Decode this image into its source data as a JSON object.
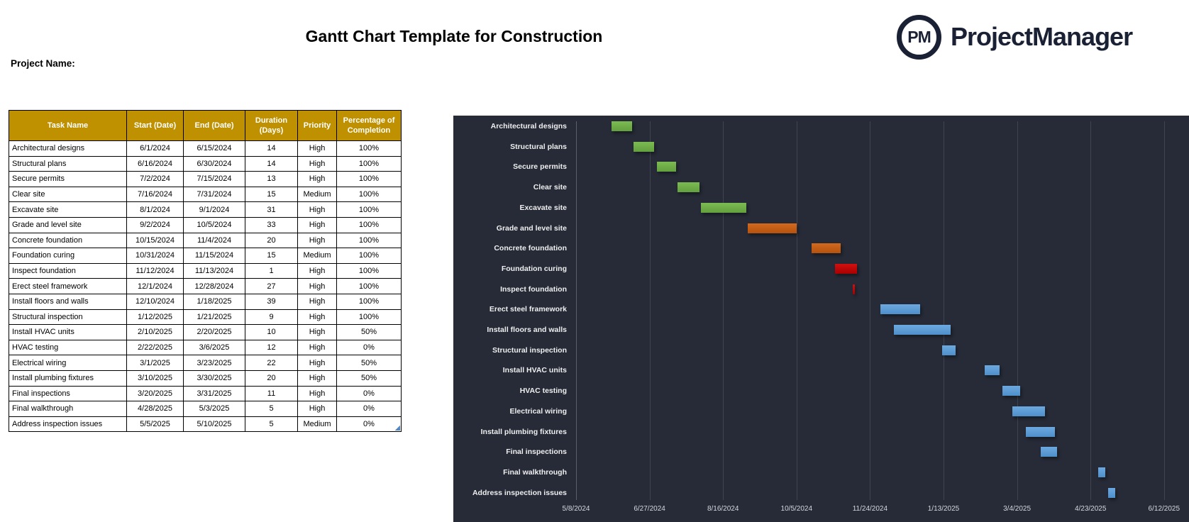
{
  "header": {
    "title": "Gantt Chart Template for Construction",
    "project_name_label": "Project Name:",
    "logo_monogram": "PM",
    "logo_text": "ProjectManager",
    "brand_color": "#1b2134"
  },
  "table": {
    "header_bg": "#BF9000",
    "columns": [
      "Task Name",
      "Start (Date)",
      "End (Date)",
      "Duration (Days)",
      "Priority",
      "Percentage of Completion"
    ],
    "rows": [
      {
        "task": "Architectural designs",
        "start": "6/1/2024",
        "end": "6/15/2024",
        "duration": "14",
        "priority": "High",
        "completion": "100%"
      },
      {
        "task": "Structural plans",
        "start": "6/16/2024",
        "end": "6/30/2024",
        "duration": "14",
        "priority": "High",
        "completion": "100%"
      },
      {
        "task": "Secure permits",
        "start": "7/2/2024",
        "end": "7/15/2024",
        "duration": "13",
        "priority": "High",
        "completion": "100%"
      },
      {
        "task": "Clear site",
        "start": "7/16/2024",
        "end": "7/31/2024",
        "duration": "15",
        "priority": "Medium",
        "completion": "100%"
      },
      {
        "task": "Excavate site",
        "start": "8/1/2024",
        "end": "9/1/2024",
        "duration": "31",
        "priority": "High",
        "completion": "100%"
      },
      {
        "task": "Grade and level site",
        "start": "9/2/2024",
        "end": "10/5/2024",
        "duration": "33",
        "priority": "High",
        "completion": "100%"
      },
      {
        "task": "Concrete foundation",
        "start": "10/15/2024",
        "end": "11/4/2024",
        "duration": "20",
        "priority": "High",
        "completion": "100%"
      },
      {
        "task": "Foundation curing",
        "start": "10/31/2024",
        "end": "11/15/2024",
        "duration": "15",
        "priority": "Medium",
        "completion": "100%"
      },
      {
        "task": "Inspect foundation",
        "start": "11/12/2024",
        "end": "11/13/2024",
        "duration": "1",
        "priority": "High",
        "completion": "100%"
      },
      {
        "task": "Erect steel framework",
        "start": "12/1/2024",
        "end": "12/28/2024",
        "duration": "27",
        "priority": "High",
        "completion": "100%"
      },
      {
        "task": "Install floors and walls",
        "start": "12/10/2024",
        "end": "1/18/2025",
        "duration": "39",
        "priority": "High",
        "completion": "100%"
      },
      {
        "task": "Structural inspection",
        "start": "1/12/2025",
        "end": "1/21/2025",
        "duration": "9",
        "priority": "High",
        "completion": "100%"
      },
      {
        "task": "Install HVAC units",
        "start": "2/10/2025",
        "end": "2/20/2025",
        "duration": "10",
        "priority": "High",
        "completion": "50%"
      },
      {
        "task": "HVAC testing",
        "start": "2/22/2025",
        "end": "3/6/2025",
        "duration": "12",
        "priority": "High",
        "completion": "0%"
      },
      {
        "task": "Electrical wiring",
        "start": "3/1/2025",
        "end": "3/23/2025",
        "duration": "22",
        "priority": "High",
        "completion": "50%"
      },
      {
        "task": "Install plumbing fixtures",
        "start": "3/10/2025",
        "end": "3/30/2025",
        "duration": "20",
        "priority": "High",
        "completion": "50%"
      },
      {
        "task": "Final inspections",
        "start": "3/20/2025",
        "end": "3/31/2025",
        "duration": "11",
        "priority": "High",
        "completion": "0%"
      },
      {
        "task": "Final walkthrough",
        "start": "4/28/2025",
        "end": "5/3/2025",
        "duration": "5",
        "priority": "High",
        "completion": "0%"
      },
      {
        "task": "Address inspection issues",
        "start": "5/5/2025",
        "end": "5/10/2025",
        "duration": "5",
        "priority": "Medium",
        "completion": "0%"
      }
    ]
  },
  "chart_data": {
    "type": "bar",
    "subtype": "gantt",
    "title": "",
    "background": "#262b37",
    "grid": "vertical",
    "legend": "none",
    "axis_start": "5/8/2024",
    "tick_interval_days": 50,
    "x_ticks": [
      "5/8/2024",
      "6/27/2024",
      "8/16/2024",
      "10/5/2024",
      "11/24/2024",
      "1/13/2025",
      "3/4/2025",
      "4/23/2025",
      "6/12/2025"
    ],
    "categories": [
      "Architectural designs",
      "Structural plans",
      "Secure permits",
      "Clear site",
      "Excavate site",
      "Grade and level site",
      "Concrete foundation",
      "Foundation curing",
      "Inspect foundation",
      "Erect steel framework",
      "Install floors and walls",
      "Structural inspection",
      "Install HVAC units",
      "HVAC testing",
      "Electrical wiring",
      "Install plumbing fixtures",
      "Final inspections",
      "Final walkthrough",
      "Address inspection issues"
    ],
    "palette": {
      "green": "#6FAC46",
      "orange": "#C55A11",
      "red": "#C00000",
      "blue": "#5B9BD5"
    },
    "bars": [
      {
        "task": "Architectural designs",
        "start": "6/1/2024",
        "end": "6/15/2024",
        "duration_days": 14,
        "color": "green"
      },
      {
        "task": "Structural plans",
        "start": "6/16/2024",
        "end": "6/30/2024",
        "duration_days": 14,
        "color": "green"
      },
      {
        "task": "Secure permits",
        "start": "7/2/2024",
        "end": "7/15/2024",
        "duration_days": 13,
        "color": "green"
      },
      {
        "task": "Clear site",
        "start": "7/16/2024",
        "end": "7/31/2024",
        "duration_days": 15,
        "color": "green"
      },
      {
        "task": "Excavate site",
        "start": "8/1/2024",
        "end": "9/1/2024",
        "duration_days": 31,
        "color": "green"
      },
      {
        "task": "Grade and level site",
        "start": "9/2/2024",
        "end": "10/5/2024",
        "duration_days": 33,
        "color": "orange"
      },
      {
        "task": "Concrete foundation",
        "start": "10/15/2024",
        "end": "11/4/2024",
        "duration_days": 20,
        "color": "orange"
      },
      {
        "task": "Foundation curing",
        "start": "10/31/2024",
        "end": "11/15/2024",
        "duration_days": 15,
        "color": "red"
      },
      {
        "task": "Inspect foundation",
        "start": "11/12/2024",
        "end": "11/13/2024",
        "duration_days": 1,
        "color": "red"
      },
      {
        "task": "Erect steel framework",
        "start": "12/1/2024",
        "end": "12/28/2024",
        "duration_days": 27,
        "color": "blue"
      },
      {
        "task": "Install floors and walls",
        "start": "12/10/2024",
        "end": "1/18/2025",
        "duration_days": 39,
        "color": "blue"
      },
      {
        "task": "Structural inspection",
        "start": "1/12/2025",
        "end": "1/21/2025",
        "duration_days": 9,
        "color": "blue"
      },
      {
        "task": "Install HVAC units",
        "start": "2/10/2025",
        "end": "2/20/2025",
        "duration_days": 10,
        "color": "blue"
      },
      {
        "task": "HVAC testing",
        "start": "2/22/2025",
        "end": "3/6/2025",
        "duration_days": 12,
        "color": "blue"
      },
      {
        "task": "Electrical wiring",
        "start": "3/1/2025",
        "end": "3/23/2025",
        "duration_days": 22,
        "color": "blue"
      },
      {
        "task": "Install plumbing fixtures",
        "start": "3/10/2025",
        "end": "3/30/2025",
        "duration_days": 20,
        "color": "blue"
      },
      {
        "task": "Final inspections",
        "start": "3/20/2025",
        "end": "3/31/2025",
        "duration_days": 11,
        "color": "blue"
      },
      {
        "task": "Final walkthrough",
        "start": "4/28/2025",
        "end": "5/3/2025",
        "duration_days": 5,
        "color": "blue"
      },
      {
        "task": "Address inspection issues",
        "start": "5/5/2025",
        "end": "5/10/2025",
        "duration_days": 5,
        "color": "blue"
      }
    ]
  }
}
